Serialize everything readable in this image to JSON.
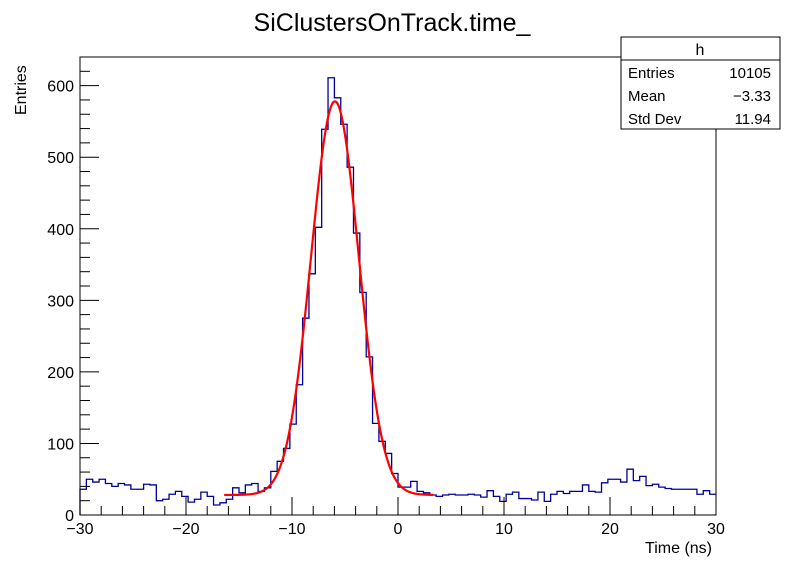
{
  "chart_data": {
    "type": "bar",
    "title": "SiClustersOnTrack.time_",
    "xlabel": "Time (ns)",
    "ylabel": "Entries",
    "xlim": [
      -30,
      30
    ],
    "ylim": [
      0,
      640
    ],
    "xticks": [
      -30,
      -20,
      -10,
      0,
      10,
      20,
      30
    ],
    "xtick_labels": [
      "−30",
      "−20",
      "−10",
      "0",
      "10",
      "20",
      "30"
    ],
    "yticks": [
      0,
      100,
      200,
      300,
      400,
      500,
      600
    ],
    "ytick_labels": [
      "0",
      "100",
      "200",
      "300",
      "400",
      "500",
      "600"
    ],
    "grid": false,
    "histogram": {
      "bin_start": -30,
      "bin_width": 0.6,
      "color": "#000099",
      "values": [
        36,
        50,
        46,
        50,
        44,
        40,
        44,
        42,
        36,
        36,
        43,
        42,
        20,
        22,
        29,
        33,
        26,
        18,
        22,
        32,
        26,
        14,
        17,
        22,
        38,
        31,
        42,
        44,
        33,
        38,
        61,
        75,
        93,
        127,
        182,
        275,
        337,
        402,
        539,
        611,
        583,
        546,
        486,
        394,
        311,
        221,
        128,
        103,
        86,
        58,
        39,
        39,
        47,
        33,
        31,
        28,
        26,
        28,
        29,
        28,
        28,
        29,
        28,
        25,
        34,
        26,
        19,
        29,
        32,
        23,
        23,
        21,
        32,
        19,
        29,
        33,
        30,
        33,
        33,
        42,
        33,
        32,
        45,
        50,
        50,
        46,
        64,
        48,
        54,
        41,
        43,
        39,
        37,
        36,
        36,
        36,
        36,
        29,
        34,
        29
      ]
    },
    "fit": {
      "function": "gaussian + constant",
      "color": "#ff0000",
      "range": [
        -16.4,
        3.3
      ],
      "amplitude": 550,
      "mean": -5.95,
      "sigma": 2.25,
      "constant": 28
    },
    "stats_box": {
      "title": "h",
      "placement": "top-right",
      "rows": [
        {
          "label": "Entries",
          "value": "10105"
        },
        {
          "label": "Mean",
          "value": "−3.33"
        },
        {
          "label": "Std Dev",
          "value": "11.94"
        }
      ]
    }
  }
}
